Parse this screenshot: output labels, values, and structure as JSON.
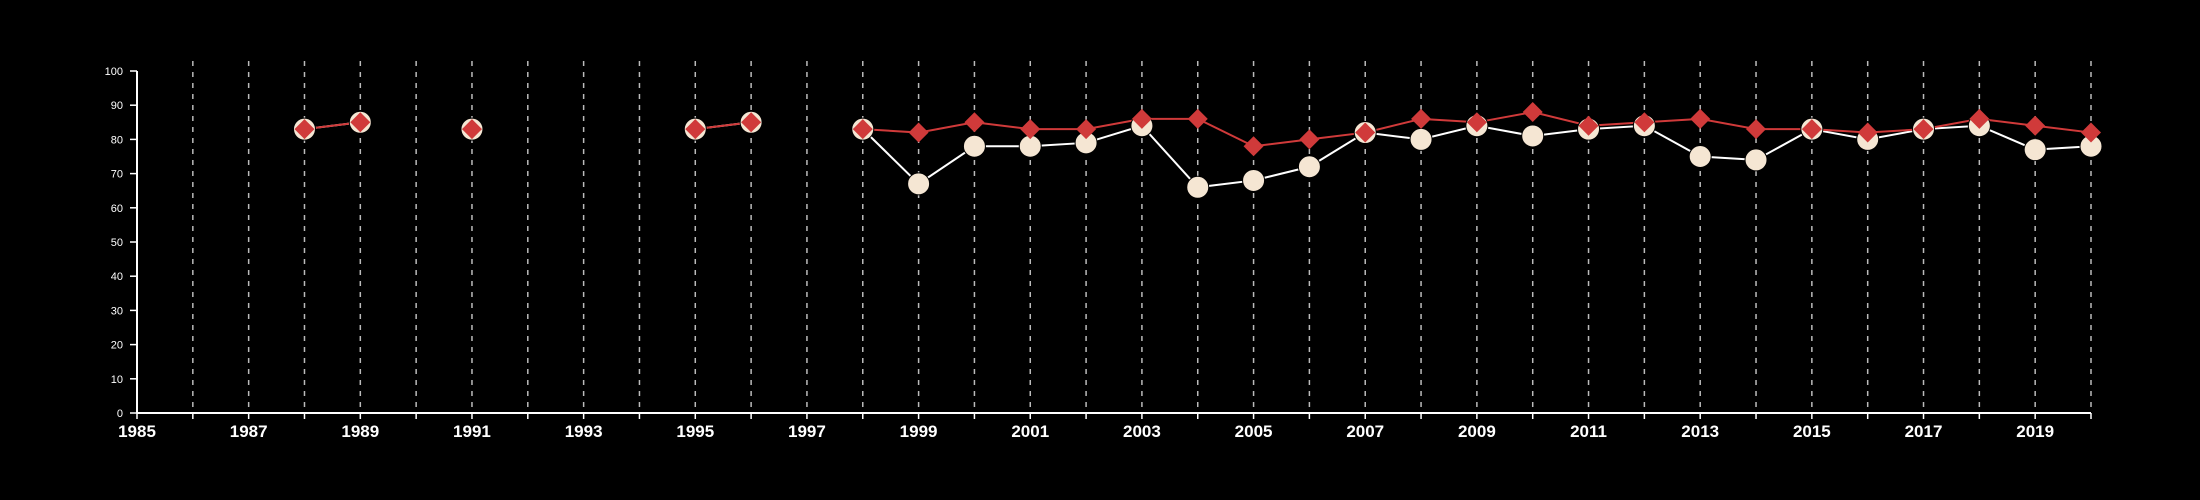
{
  "chart_data": {
    "type": "line",
    "title": "",
    "xlabel": "",
    "ylabel": "",
    "xlim": [
      1985,
      2020
    ],
    "ylim": [
      0,
      100
    ],
    "x_ticks": [
      1985,
      1987,
      1989,
      1991,
      1993,
      1995,
      1997,
      1999,
      2001,
      2003,
      2005,
      2007,
      2009,
      2011,
      2013,
      2015,
      2017,
      2019
    ],
    "y_ticks": [
      0,
      10,
      20,
      30,
      40,
      50,
      60,
      70,
      80,
      90,
      100
    ],
    "grid": "vertical dashed lines at every year",
    "legend": "none",
    "series": [
      {
        "marker": "circle",
        "color": "#f5e6d3",
        "line_color": "#ffffff",
        "points": [
          [
            1988,
            83
          ],
          [
            1989,
            85
          ],
          [
            1991,
            83
          ],
          [
            1995,
            83
          ],
          [
            1996,
            85
          ],
          [
            1998,
            83
          ],
          [
            1999,
            67
          ],
          [
            2000,
            78
          ],
          [
            2001,
            78
          ],
          [
            2002,
            79
          ],
          [
            2003,
            84
          ],
          [
            2004,
            66
          ],
          [
            2005,
            68
          ],
          [
            2006,
            72
          ],
          [
            2007,
            82
          ],
          [
            2008,
            80
          ],
          [
            2009,
            84
          ],
          [
            2010,
            81
          ],
          [
            2011,
            83
          ],
          [
            2012,
            84
          ],
          [
            2013,
            75
          ],
          [
            2014,
            74
          ],
          [
            2015,
            83
          ],
          [
            2016,
            80
          ],
          [
            2017,
            83
          ],
          [
            2018,
            84
          ],
          [
            2019,
            77
          ],
          [
            2020,
            78
          ]
        ]
      },
      {
        "marker": "diamond",
        "color": "#d03a3a",
        "line_color": "#d03a3a",
        "points": [
          [
            1988,
            83
          ],
          [
            1989,
            85
          ],
          [
            1991,
            83
          ],
          [
            1995,
            83
          ],
          [
            1996,
            85
          ],
          [
            1998,
            83
          ],
          [
            1999,
            82
          ],
          [
            2000,
            85
          ],
          [
            2001,
            83
          ],
          [
            2002,
            83
          ],
          [
            2003,
            86
          ],
          [
            2004,
            86
          ],
          [
            2005,
            78
          ],
          [
            2006,
            80
          ],
          [
            2007,
            82
          ],
          [
            2008,
            86
          ],
          [
            2009,
            85
          ],
          [
            2010,
            88
          ],
          [
            2011,
            84
          ],
          [
            2012,
            85
          ],
          [
            2013,
            86
          ],
          [
            2014,
            83
          ],
          [
            2015,
            83
          ],
          [
            2016,
            82
          ],
          [
            2017,
            83
          ],
          [
            2018,
            86
          ],
          [
            2019,
            84
          ],
          [
            2020,
            82
          ]
        ]
      }
    ]
  }
}
